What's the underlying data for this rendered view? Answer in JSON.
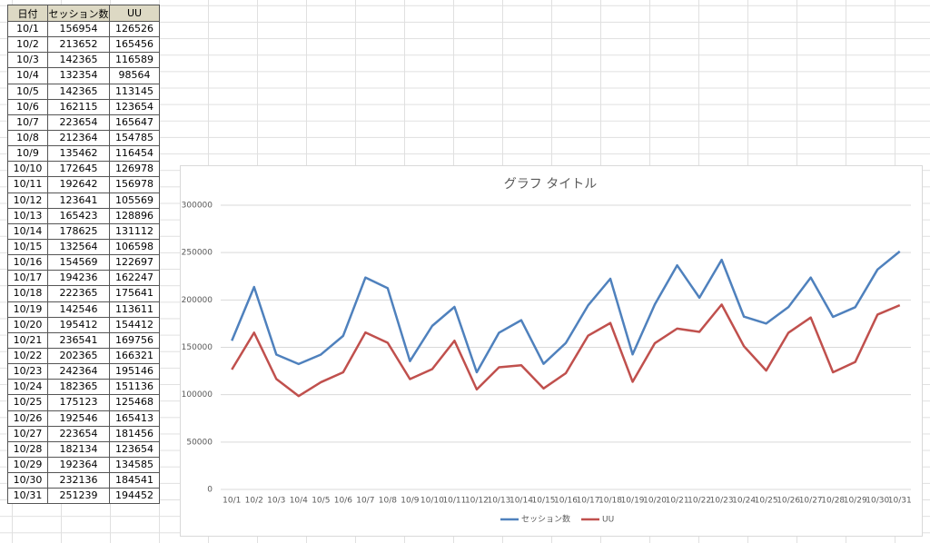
{
  "table_header": "日付",
  "chart_data": {
    "type": "line",
    "title": "グラフ タイトル",
    "categories": [
      "10/1",
      "10/2",
      "10/3",
      "10/4",
      "10/5",
      "10/6",
      "10/7",
      "10/8",
      "10/9",
      "10/10",
      "10/11",
      "10/12",
      "10/13",
      "10/14",
      "10/15",
      "10/16",
      "10/17",
      "10/18",
      "10/19",
      "10/20",
      "10/21",
      "10/22",
      "10/23",
      "10/24",
      "10/25",
      "10/26",
      "10/27",
      "10/28",
      "10/29",
      "10/30",
      "10/31"
    ],
    "series": [
      {
        "name": "セッション数",
        "color": "#4f81bd",
        "values": [
          156954,
          213652,
          142365,
          132354,
          142365,
          162115,
          223654,
          212364,
          135462,
          172645,
          192642,
          123641,
          165423,
          178625,
          132564,
          154569,
          194236,
          222365,
          142546,
          195412,
          236541,
          202365,
          242364,
          182365,
          175123,
          192546,
          223654,
          182134,
          192364,
          232136,
          251239
        ]
      },
      {
        "name": "UU",
        "color": "#c0504d",
        "values": [
          126526,
          165456,
          116589,
          98564,
          113145,
          123654,
          165647,
          154785,
          116454,
          126978,
          156978,
          105569,
          128896,
          131112,
          106598,
          122697,
          162247,
          175641,
          113611,
          154412,
          169756,
          166321,
          195146,
          151136,
          125468,
          165413,
          181456,
          123654,
          134585,
          184541,
          194452
        ]
      }
    ],
    "ylim": [
      0,
      300000
    ],
    "yticks": [
      0,
      50000,
      100000,
      150000,
      200000,
      250000,
      300000
    ],
    "grid": true,
    "legend": "bottom"
  }
}
